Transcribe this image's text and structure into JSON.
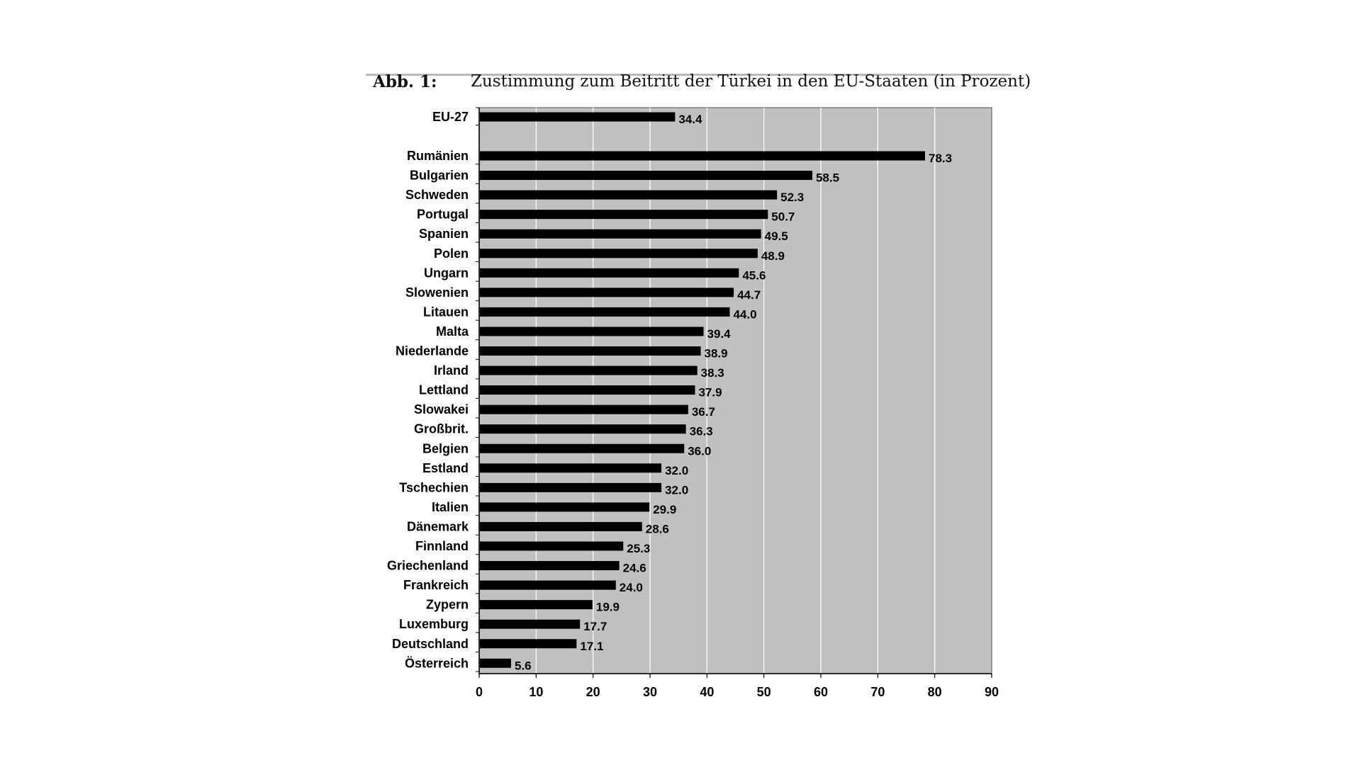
{
  "caption": {
    "label": "Abb. 1:",
    "title": "Zustimmung zum Beitritt der Türkei in den EU-Staaten (in Prozent)"
  },
  "colors": {
    "plot_background": "#c0c0c0",
    "bar": "#000000",
    "gridline": "#ffffff"
  },
  "chart_data": {
    "type": "bar",
    "orientation": "horizontal",
    "title": "Zustimmung zum Beitritt der Türkei in den EU-Staaten (in Prozent)",
    "xlabel": "",
    "ylabel": "",
    "xlim": [
      0,
      90
    ],
    "ticks": [
      0,
      10,
      20,
      30,
      40,
      50,
      60,
      70,
      80,
      90
    ],
    "grid": true,
    "categories": [
      "EU-27",
      "Rumänien",
      "Bulgarien",
      "Schweden",
      "Portugal",
      "Spanien",
      "Polen",
      "Ungarn",
      "Slowenien",
      "Litauen",
      "Malta",
      "Niederlande",
      "Irland",
      "Lettland",
      "Slowakei",
      "Großbrit.",
      "Belgien",
      "Estland",
      "Tschechien",
      "Italien",
      "Dänemark",
      "Finnland",
      "Griechenland",
      "Frankreich",
      "Zypern",
      "Luxemburg",
      "Deutschland",
      "Österreich"
    ],
    "values": [
      34.4,
      78.3,
      58.5,
      52.3,
      50.7,
      49.5,
      48.9,
      45.6,
      44.7,
      44.0,
      39.4,
      38.9,
      38.3,
      37.9,
      36.7,
      36.3,
      36.0,
      32.0,
      32.0,
      29.9,
      28.6,
      25.3,
      24.6,
      24.0,
      19.9,
      17.7,
      17.1,
      5.6
    ],
    "value_labels": [
      "34.4",
      "78.3",
      "58.5",
      "52.3",
      "50.7",
      "49.5",
      "48.9",
      "45.6",
      "44.7",
      "44.0",
      "39.4",
      "38.9",
      "38.3",
      "37.9",
      "36.7",
      "36.3",
      "36.0",
      "32.0",
      "32.0",
      "29.9",
      "28.6",
      "25.3",
      "24.6",
      "24.0",
      "19.9",
      "17.7",
      "17.1",
      "5.6"
    ]
  }
}
